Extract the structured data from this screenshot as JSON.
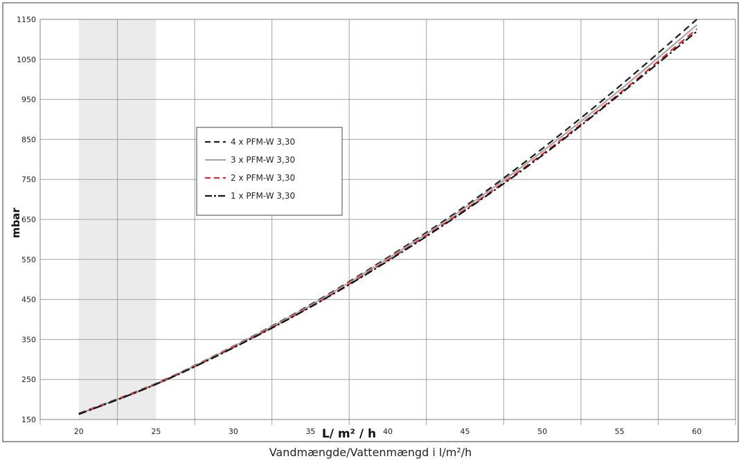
{
  "chart_data": {
    "type": "line",
    "ylabel": "mbar",
    "xlabel_inner": "L/ m² / h",
    "caption": "Vandmængde/Vattenmængd i l/m²/h",
    "xlim": [
      17.5,
      62.5
    ],
    "ylim": [
      150,
      1150
    ],
    "x_ticks": [
      20,
      25,
      30,
      35,
      40,
      45,
      50,
      55,
      60
    ],
    "y_ticks": [
      150,
      250,
      350,
      450,
      550,
      650,
      750,
      850,
      950,
      1050,
      1150
    ],
    "shaded_region": [
      20,
      25
    ],
    "legend_position": "upper-left",
    "x": [
      20,
      25,
      30,
      35,
      40,
      45,
      50,
      55,
      60
    ],
    "series": [
      {
        "name": "4 x PFM-W 3,30",
        "color": "#1a1a1a",
        "style": "dashed",
        "values": [
          165,
          240,
          333,
          437,
          555,
          683,
          827,
          983,
          1150
        ]
      },
      {
        "name": "3 x PFM-W 3,30",
        "color": "#a6a6a6",
        "style": "solid",
        "values": [
          164,
          239,
          332,
          435,
          552,
          679,
          820,
          973,
          1136
        ]
      },
      {
        "name": "2 x PFM-W 3,30",
        "color": "#d9262b",
        "style": "dashed",
        "values": [
          163,
          238,
          330,
          432,
          548,
          674,
          813,
          965,
          1126
        ]
      },
      {
        "name": "1 x PFM-W 3,30",
        "color": "#111111",
        "style": "dashdot",
        "values": [
          163,
          238,
          329,
          431,
          546,
          672,
          810,
          962,
          1120
        ]
      }
    ]
  }
}
